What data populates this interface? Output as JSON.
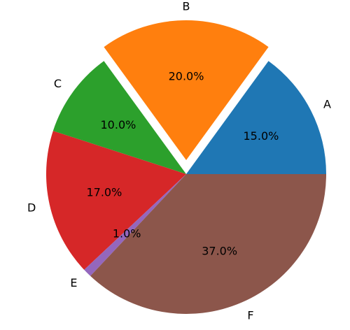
{
  "chart_data": {
    "type": "pie",
    "categories": [
      "A",
      "B",
      "C",
      "D",
      "E",
      "F"
    ],
    "values": [
      15.0,
      20.0,
      10.0,
      17.0,
      1.0,
      37.0
    ],
    "value_labels": [
      "15.0%",
      "20.0%",
      "10.0%",
      "17.0%",
      "1.0%",
      "37.0%"
    ],
    "colors": [
      "#1f77b4",
      "#ff7f0e",
      "#2ca02c",
      "#d62728",
      "#9467bd",
      "#8c564b"
    ],
    "explode": [
      0,
      0.1,
      0,
      0,
      0,
      0
    ],
    "start_angle_deg": 0,
    "direction": "counterclockwise",
    "legend": "none",
    "grid": false
  }
}
